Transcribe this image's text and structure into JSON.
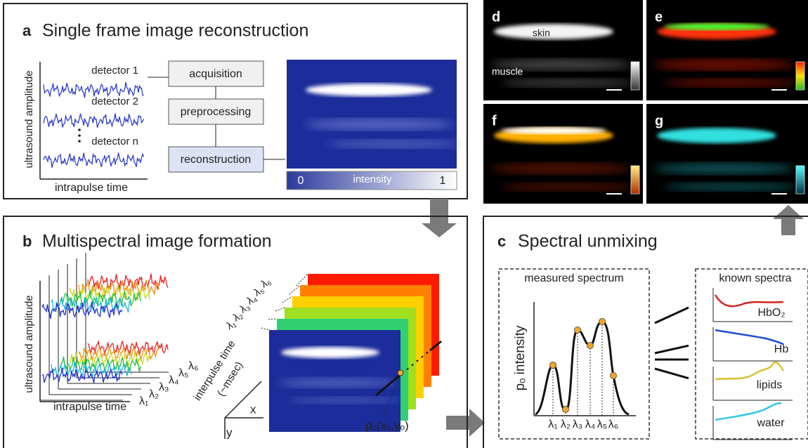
{
  "panel_a": {
    "letter": "a",
    "title": "Single frame image reconstruction",
    "y_axis_label": "ultrasound amplitude",
    "x_axis_label": "intrapulse time",
    "detectors": [
      "detector 1",
      "detector 2",
      "detector n"
    ],
    "steps": [
      "acquisition",
      "preprocessing",
      "reconstruction"
    ],
    "colorbar": {
      "min_label": "0",
      "label": "intensity",
      "max_label": "1"
    }
  },
  "panel_images": [
    {
      "letter": "d",
      "labels": [
        "skin",
        "muscle"
      ]
    },
    {
      "letter": "e"
    },
    {
      "letter": "f"
    },
    {
      "letter": "g"
    }
  ],
  "panel_b": {
    "letter": "b",
    "title": "Multispectral image formation",
    "y_axis_label": "ultrasound amplitude",
    "x_axis_label": "intrapulse time",
    "signal_wavelengths": [
      "λ₁",
      "λ₂",
      "λ₃",
      "λ₄",
      "λ₅",
      "λ₆"
    ],
    "frame_wavelengths": [
      "λ₁",
      "λ₂",
      "λ₃",
      "λ₄",
      "λ₅",
      "λ₆"
    ],
    "stack_axis_label": [
      "interpulse time",
      "(~msec)"
    ],
    "image_axes": [
      "x",
      "y"
    ],
    "pixel_label": "pₒ(xₒ,yₒ)"
  },
  "panel_c": {
    "letter": "c",
    "title": "Spectral unmixing",
    "measured": {
      "title": "measured spectrum",
      "y_axis_label": "pₒ intensity",
      "wavelengths": [
        "λ₁",
        "λ₂",
        "λ₃",
        "λ₄",
        "λ₅",
        "λ₆"
      ]
    },
    "known": {
      "title": "known spectra",
      "components": [
        "HbO₂",
        "Hb",
        "lipids",
        "water"
      ]
    }
  }
}
